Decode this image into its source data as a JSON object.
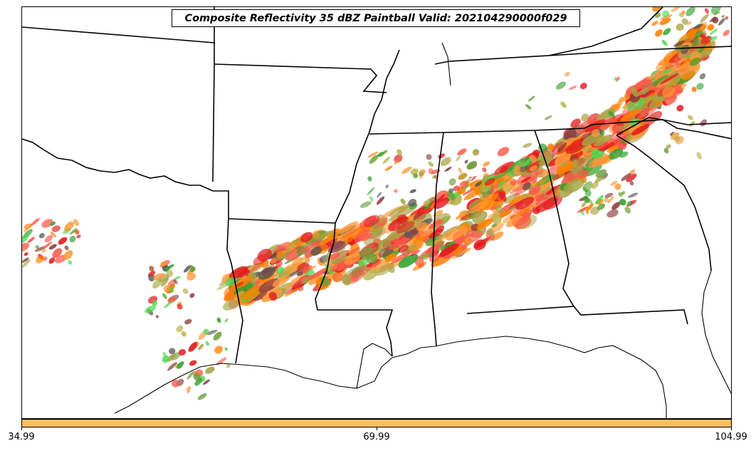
{
  "title": "Composite Reflectivity 35 dBZ Paintball Valid: 202104290000f029",
  "colorbar": {
    "color": "#fdbf5f",
    "ticks": [
      "34.99",
      "69.99",
      "104.99"
    ]
  },
  "colors": {
    "member_colors": [
      "#e31a1c",
      "#fb5a4a",
      "#ff7f00",
      "#fe9a3a",
      "#a7a244",
      "#b8b14a",
      "#33a02c",
      "#4fd64f",
      "#8c3a3a",
      "#555555",
      "#6aa03a"
    ]
  }
}
